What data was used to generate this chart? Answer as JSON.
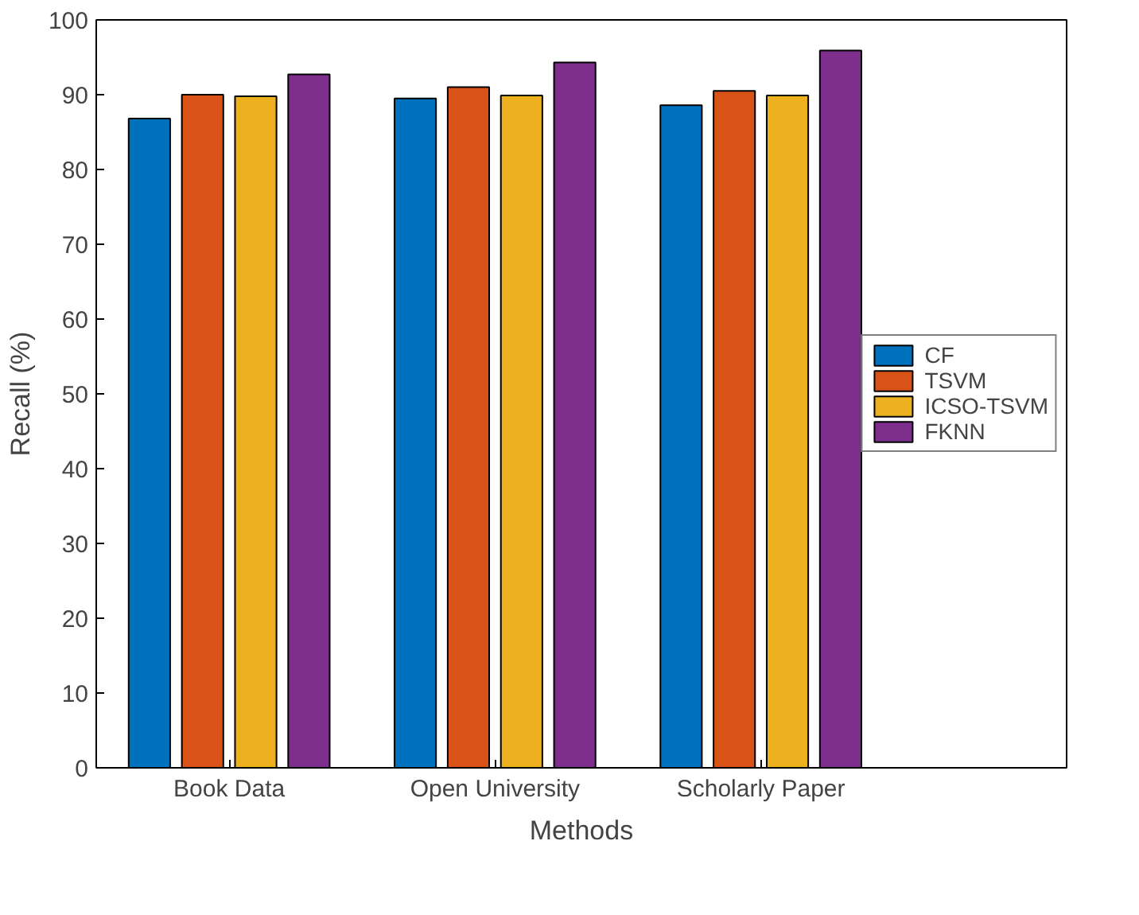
{
  "chart_data": {
    "type": "bar",
    "xlabel": "Methods",
    "ylabel": "Recall (%)",
    "categories": [
      "Book Data",
      "Open University",
      "Scholarly Paper"
    ],
    "series": [
      {
        "name": "CF",
        "color": "#0072bd",
        "values": [
          86.8,
          89.5,
          88.6
        ]
      },
      {
        "name": "TSVM",
        "color": "#d95319",
        "values": [
          90.0,
          91.0,
          90.5
        ]
      },
      {
        "name": "ICSO-TSVM",
        "color": "#edb120",
        "values": [
          89.8,
          89.9,
          89.9
        ]
      },
      {
        "name": "FKNN",
        "color": "#7e2f8e",
        "values": [
          92.7,
          94.3,
          95.9
        ]
      }
    ],
    "ylim": [
      0,
      100
    ],
    "yticks": [
      0,
      10,
      20,
      30,
      40,
      50,
      60,
      70,
      80,
      90,
      100
    ],
    "grid": false,
    "legend": "right"
  }
}
